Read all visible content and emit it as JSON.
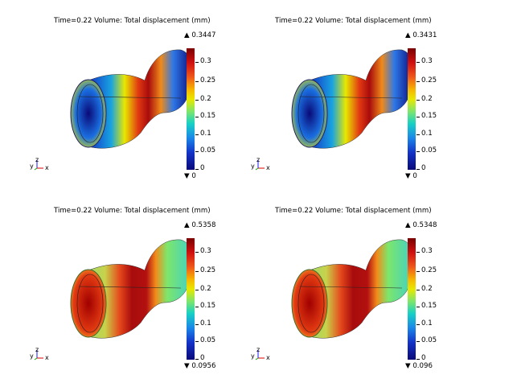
{
  "panels": [
    {
      "title": "Time=0.22   Volume: Total displacement (mm)",
      "max": "0.3447",
      "min": "0",
      "variant": "blue"
    },
    {
      "title": "Time=0.22   Volume: Total displacement (mm)",
      "max": "0.3431",
      "min": "0",
      "variant": "blue"
    },
    {
      "title": "Time=0.22   Volume: Total displacement (mm)",
      "max": "0.5358",
      "min": "0.0956",
      "variant": "green"
    },
    {
      "title": "Time=0.22   Volume: Total displacement (mm)",
      "max": "0.5348",
      "min": "0.096",
      "variant": "green"
    }
  ],
  "colorbar": {
    "ticks": [
      "0.3",
      "0.25",
      "0.2",
      "0.15",
      "0.1",
      "0.05",
      "0"
    ]
  },
  "axes": {
    "x": "x",
    "y": "y",
    "z": "z"
  },
  "icons": {
    "max": "up-triangle-icon",
    "min": "down-triangle-icon"
  }
}
